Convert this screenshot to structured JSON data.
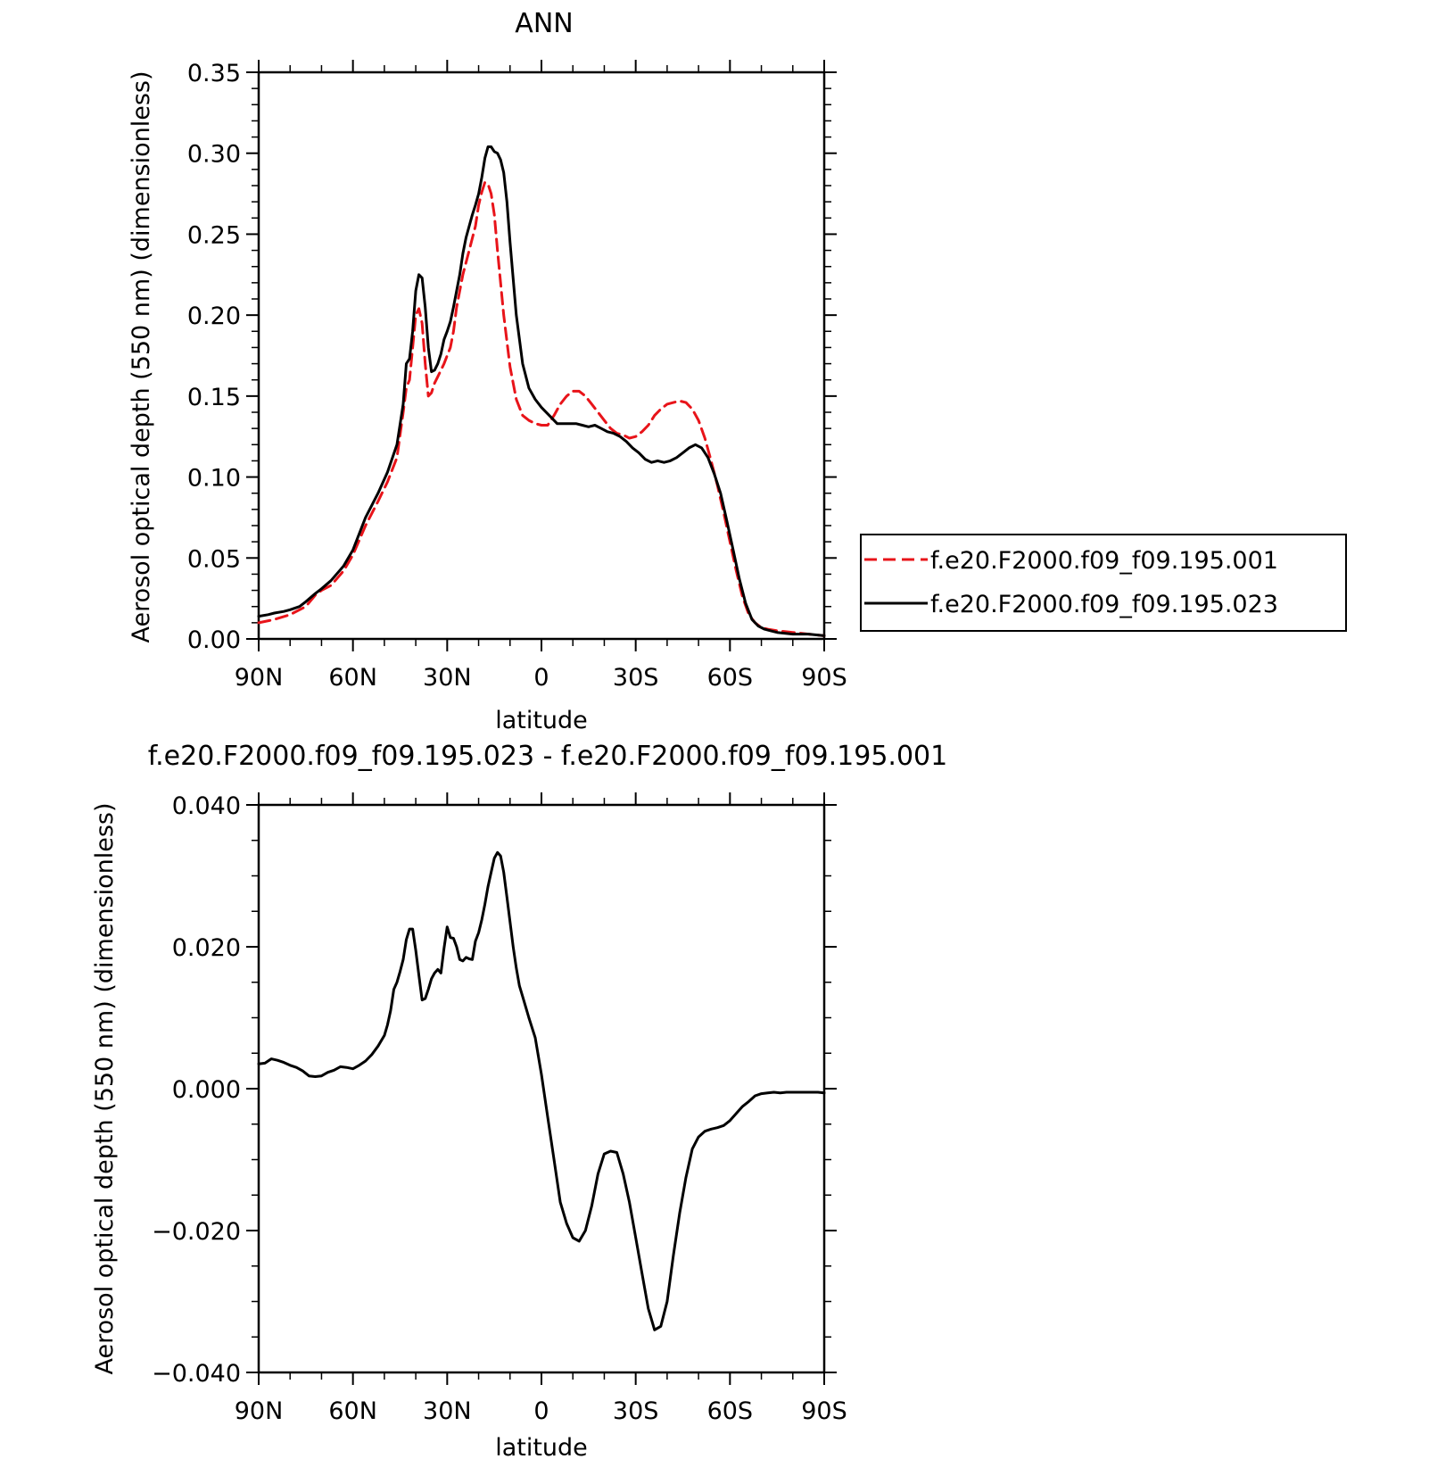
{
  "chart_data": [
    {
      "type": "line",
      "title": "ANN",
      "xlabel": "latitude",
      "ylabel": "Aerosol optical depth (550 nm) (dimensionless)",
      "xlim": [
        90,
        -90
      ],
      "ylim": [
        0,
        0.35
      ],
      "x_ticks": [
        {
          "value": 90,
          "label": "90N"
        },
        {
          "value": 60,
          "label": "60N"
        },
        {
          "value": 30,
          "label": "30N"
        },
        {
          "value": 0,
          "label": "0"
        },
        {
          "value": -30,
          "label": "30S"
        },
        {
          "value": -60,
          "label": "60S"
        },
        {
          "value": -90,
          "label": "90S"
        }
      ],
      "y_ticks": [
        {
          "value": 0.0,
          "label": "0.00"
        },
        {
          "value": 0.05,
          "label": "0.05"
        },
        {
          "value": 0.1,
          "label": "0.10"
        },
        {
          "value": 0.15,
          "label": "0.15"
        },
        {
          "value": 0.2,
          "label": "0.20"
        },
        {
          "value": 0.25,
          "label": "0.25"
        },
        {
          "value": 0.3,
          "label": "0.30"
        },
        {
          "value": 0.35,
          "label": "0.35"
        }
      ],
      "legend": "right",
      "series": [
        {
          "name": "f.e20.F2000.f09_f09.195.001",
          "color": "#e8141a",
          "dash": "dashed",
          "x": [
            90,
            85,
            80,
            75,
            72,
            70,
            67,
            63,
            60,
            56,
            52,
            49,
            46,
            44,
            43,
            42,
            41,
            40,
            39,
            38,
            37,
            36,
            35,
            34,
            33,
            31,
            30,
            29,
            28,
            27,
            25,
            23,
            21,
            20,
            19,
            18,
            17,
            16,
            15,
            14,
            12,
            10,
            8,
            6,
            4,
            2,
            0,
            -2,
            -4,
            -6,
            -8,
            -10,
            -12,
            -14,
            -16,
            -18,
            -20,
            -22,
            -24,
            -26,
            -28,
            -30,
            -32,
            -34,
            -36,
            -38,
            -40,
            -42,
            -44,
            -46,
            -48,
            -50,
            -52,
            -54,
            -56,
            -58,
            -60,
            -62,
            -64,
            -66,
            -68,
            -70,
            -72,
            -75,
            -80,
            -85,
            -90
          ],
          "y": [
            0.01,
            0.012,
            0.015,
            0.02,
            0.027,
            0.03,
            0.033,
            0.042,
            0.052,
            0.07,
            0.085,
            0.097,
            0.112,
            0.14,
            0.155,
            0.16,
            0.18,
            0.2,
            0.204,
            0.195,
            0.17,
            0.15,
            0.152,
            0.158,
            0.162,
            0.17,
            0.175,
            0.18,
            0.19,
            0.205,
            0.225,
            0.24,
            0.255,
            0.268,
            0.276,
            0.282,
            0.281,
            0.275,
            0.262,
            0.24,
            0.2,
            0.168,
            0.148,
            0.138,
            0.135,
            0.133,
            0.132,
            0.132,
            0.138,
            0.145,
            0.15,
            0.153,
            0.153,
            0.15,
            0.145,
            0.14,
            0.135,
            0.13,
            0.127,
            0.126,
            0.124,
            0.125,
            0.128,
            0.132,
            0.138,
            0.142,
            0.145,
            0.146,
            0.147,
            0.146,
            0.142,
            0.135,
            0.124,
            0.11,
            0.095,
            0.078,
            0.06,
            0.042,
            0.026,
            0.015,
            0.01,
            0.007,
            0.006,
            0.005,
            0.004,
            0.003,
            0.002
          ]
        },
        {
          "name": "f.e20.F2000.f09_f09.195.023",
          "color": "#000000",
          "dash": "solid",
          "x": [
            90,
            87,
            85,
            82,
            80,
            77,
            75,
            72,
            70,
            67,
            63,
            60,
            56,
            52,
            49,
            46,
            44,
            43,
            42,
            41,
            40,
            39,
            38,
            37,
            36,
            35,
            34,
            33,
            32,
            31,
            30,
            29,
            28,
            27,
            26,
            25,
            24,
            23,
            22,
            21,
            20,
            19,
            18,
            17,
            16,
            15,
            14,
            13,
            12,
            11,
            10,
            8,
            6,
            4,
            2,
            0,
            -1,
            -3,
            -5,
            -7,
            -9,
            -11,
            -13,
            -15,
            -17,
            -19,
            -21,
            -23,
            -25,
            -27,
            -29,
            -31,
            -33,
            -35,
            -37,
            -39,
            -41,
            -43,
            -45,
            -47,
            -49,
            -51,
            -53,
            -55,
            -57,
            -59,
            -61,
            -63,
            -65,
            -67,
            -69,
            -71,
            -73,
            -75,
            -80,
            -85,
            -90
          ],
          "y": [
            0.014,
            0.015,
            0.016,
            0.017,
            0.018,
            0.02,
            0.023,
            0.028,
            0.031,
            0.036,
            0.045,
            0.055,
            0.075,
            0.09,
            0.103,
            0.12,
            0.145,
            0.17,
            0.173,
            0.19,
            0.215,
            0.225,
            0.223,
            0.205,
            0.18,
            0.165,
            0.166,
            0.17,
            0.176,
            0.185,
            0.19,
            0.196,
            0.205,
            0.215,
            0.225,
            0.238,
            0.248,
            0.255,
            0.262,
            0.268,
            0.275,
            0.285,
            0.297,
            0.304,
            0.304,
            0.301,
            0.3,
            0.296,
            0.288,
            0.27,
            0.245,
            0.2,
            0.17,
            0.155,
            0.148,
            0.143,
            0.141,
            0.137,
            0.133,
            0.133,
            0.133,
            0.133,
            0.132,
            0.131,
            0.132,
            0.13,
            0.128,
            0.127,
            0.125,
            0.122,
            0.118,
            0.115,
            0.111,
            0.109,
            0.11,
            0.109,
            0.11,
            0.112,
            0.115,
            0.118,
            0.12,
            0.118,
            0.112,
            0.102,
            0.09,
            0.073,
            0.055,
            0.037,
            0.022,
            0.012,
            0.008,
            0.006,
            0.005,
            0.004,
            0.003,
            0.003,
            0.002
          ]
        }
      ]
    },
    {
      "type": "line",
      "title": "f.e20.F2000.f09_f09.195.023 - f.e20.F2000.f09_f09.195.001",
      "xlabel": "latitude",
      "ylabel": "Aerosol optical depth (550 nm) (dimensionless)",
      "xlim": [
        90,
        -90
      ],
      "ylim": [
        -0.04,
        0.04
      ],
      "x_ticks": [
        {
          "value": 90,
          "label": "90N"
        },
        {
          "value": 60,
          "label": "60N"
        },
        {
          "value": 30,
          "label": "30N"
        },
        {
          "value": 0,
          "label": "0"
        },
        {
          "value": -30,
          "label": "30S"
        },
        {
          "value": -60,
          "label": "60S"
        },
        {
          "value": -90,
          "label": "90S"
        }
      ],
      "y_ticks": [
        {
          "value": -0.04,
          "label": "−0.040"
        },
        {
          "value": -0.02,
          "label": "−0.020"
        },
        {
          "value": 0.0,
          "label": "0.000"
        },
        {
          "value": 0.02,
          "label": "0.020"
        },
        {
          "value": 0.04,
          "label": "0.040"
        }
      ],
      "series": [
        {
          "color": "#000000",
          "dash": "solid",
          "x": [
            90,
            88,
            86,
            84,
            82,
            80,
            78,
            76,
            74,
            72,
            70,
            68,
            66,
            64,
            62,
            60,
            58,
            56,
            54,
            52,
            50,
            49,
            48,
            47,
            46,
            45,
            44,
            43,
            42,
            41,
            40,
            39,
            38,
            37,
            36,
            35,
            34,
            33,
            32,
            31,
            30,
            29,
            28,
            27,
            26,
            25,
            24,
            23,
            22,
            21,
            20,
            19,
            18,
            17,
            16,
            15,
            14,
            13,
            12,
            11,
            10,
            9,
            8,
            7,
            6,
            5,
            4,
            2,
            0,
            -2,
            -4,
            -6,
            -8,
            -10,
            -12,
            -14,
            -16,
            -18,
            -20,
            -22,
            -24,
            -26,
            -28,
            -30,
            -32,
            -34,
            -36,
            -38,
            -40,
            -42,
            -44,
            -46,
            -48,
            -50,
            -52,
            -54,
            -56,
            -58,
            -60,
            -62,
            -64,
            -66,
            -68,
            -70,
            -72,
            -74,
            -76,
            -78,
            -80,
            -84,
            -88,
            -90
          ],
          "y": [
            0.0035,
            0.0036,
            0.0042,
            0.004,
            0.0037,
            0.0033,
            0.003,
            0.0025,
            0.0018,
            0.0017,
            0.0018,
            0.0023,
            0.0026,
            0.0031,
            0.003,
            0.0028,
            0.0033,
            0.0039,
            0.0048,
            0.006,
            0.0075,
            0.009,
            0.011,
            0.014,
            0.015,
            0.0165,
            0.0182,
            0.021,
            0.0225,
            0.0225,
            0.0195,
            0.016,
            0.0125,
            0.0127,
            0.014,
            0.0155,
            0.0163,
            0.0168,
            0.0163,
            0.0198,
            0.0228,
            0.0213,
            0.0212,
            0.02,
            0.0182,
            0.018,
            0.0185,
            0.0183,
            0.0182,
            0.0208,
            0.022,
            0.0238,
            0.026,
            0.0285,
            0.0305,
            0.0325,
            0.0333,
            0.0328,
            0.0305,
            0.027,
            0.0235,
            0.02,
            0.017,
            0.0145,
            0.013,
            0.0115,
            0.01,
            0.0072,
            0.002,
            -0.004,
            -0.01,
            -0.016,
            -0.019,
            -0.021,
            -0.0215,
            -0.02,
            -0.0165,
            -0.012,
            -0.0092,
            -0.0088,
            -0.009,
            -0.012,
            -0.016,
            -0.021,
            -0.026,
            -0.031,
            -0.034,
            -0.0335,
            -0.03,
            -0.0235,
            -0.0175,
            -0.0125,
            -0.0085,
            -0.0068,
            -0.006,
            -0.0057,
            -0.0055,
            -0.0052,
            -0.0045,
            -0.0035,
            -0.0025,
            -0.0018,
            -0.001,
            -0.0007,
            -0.0006,
            -0.0005,
            -0.0006,
            -0.0005,
            -0.0005,
            -0.0005,
            -0.0005,
            -0.0006
          ]
        }
      ]
    }
  ]
}
